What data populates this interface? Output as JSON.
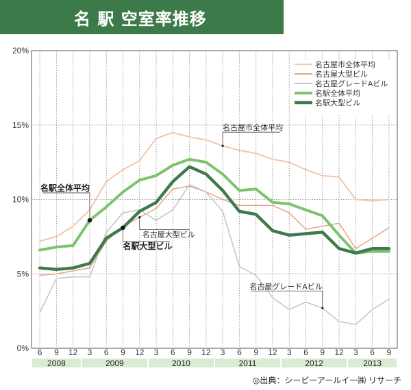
{
  "title": "名 駅 空室率推移",
  "source": "◎出典：シービーアールイー㈱ リサーチ",
  "chart_data": {
    "type": "line",
    "title": "名 駅 空室率推移",
    "ylim": [
      0,
      20
    ],
    "y_ticks": [
      "0%",
      "5%",
      "10%",
      "15%",
      "20%"
    ],
    "x": [
      "6",
      "9",
      "12",
      "3",
      "6",
      "9",
      "12",
      "3",
      "6",
      "9",
      "12",
      "3",
      "6",
      "9",
      "12",
      "3",
      "6",
      "9",
      "12",
      "3",
      "6",
      "9"
    ],
    "years": [
      {
        "label": "2008",
        "from": 0,
        "to": 2
      },
      {
        "label": "2009",
        "from": 3,
        "to": 6
      },
      {
        "label": "2010",
        "from": 7,
        "to": 10
      },
      {
        "label": "2011",
        "from": 11,
        "to": 14
      },
      {
        "label": "2012",
        "from": 15,
        "to": 18
      },
      {
        "label": "2013",
        "from": 19,
        "to": 21
      }
    ],
    "series": [
      {
        "name": "名古屋市全体平均",
        "color": "#f2c6ae",
        "width": 2,
        "values": [
          7.2,
          7.5,
          8.2,
          9.3,
          11.2,
          12.0,
          12.6,
          14.1,
          14.5,
          14.2,
          14.0,
          13.6,
          13.3,
          13.1,
          12.7,
          12.5,
          12.0,
          11.6,
          11.5,
          10.0,
          9.9,
          10.0
        ]
      },
      {
        "name": "名古屋大型ビル",
        "color": "#e4a485",
        "width": 1.5,
        "values": [
          4.9,
          5.0,
          5.2,
          5.4,
          7.2,
          8.2,
          8.8,
          9.4,
          10.7,
          10.9,
          10.5,
          10.0,
          9.6,
          9.6,
          9.6,
          9.1,
          8.0,
          8.2,
          8.4,
          6.7,
          7.4,
          8.1
        ]
      },
      {
        "name": "名古屋グレードAビル",
        "color": "#c4c4c4",
        "width": 1.5,
        "values": [
          2.4,
          4.7,
          4.8,
          4.8,
          7.8,
          9.1,
          9.3,
          8.6,
          9.3,
          11.0,
          10.5,
          9.2,
          5.5,
          4.9,
          3.4,
          2.6,
          3.1,
          2.7,
          1.8,
          1.6,
          2.6,
          3.3
        ]
      },
      {
        "name": "名駅全体平均",
        "color": "#7cc36b",
        "width": 4,
        "values": [
          6.6,
          6.8,
          6.9,
          8.6,
          9.5,
          10.5,
          11.3,
          11.6,
          12.3,
          12.7,
          12.5,
          11.7,
          10.6,
          10.7,
          9.8,
          9.7,
          9.3,
          8.9,
          7.6,
          6.4,
          6.5,
          6.5
        ]
      },
      {
        "name": "名駅大型ビル",
        "color": "#3e7a4c",
        "width": 4.5,
        "values": [
          5.4,
          5.3,
          5.4,
          5.7,
          7.4,
          8.1,
          9.2,
          9.8,
          11.2,
          12.2,
          11.7,
          10.6,
          9.2,
          9.0,
          7.9,
          7.6,
          7.7,
          7.8,
          6.7,
          6.4,
          6.7,
          6.7
        ]
      }
    ],
    "annotations": [
      {
        "text": "名古屋市全体平均",
        "series": 0,
        "index": 11,
        "bold": false
      },
      {
        "text": "名駅全体平均",
        "series": 3,
        "index": 3,
        "bold": true
      },
      {
        "text": "名古屋大型ビル",
        "series": 1,
        "index": 6,
        "bold": false
      },
      {
        "text": "名駅大型ビル",
        "series": 4,
        "index": 5,
        "bold": true
      },
      {
        "text": "名古屋グレードAビル",
        "series": 2,
        "index": 17,
        "bold": false
      }
    ],
    "legend": "top-right"
  }
}
